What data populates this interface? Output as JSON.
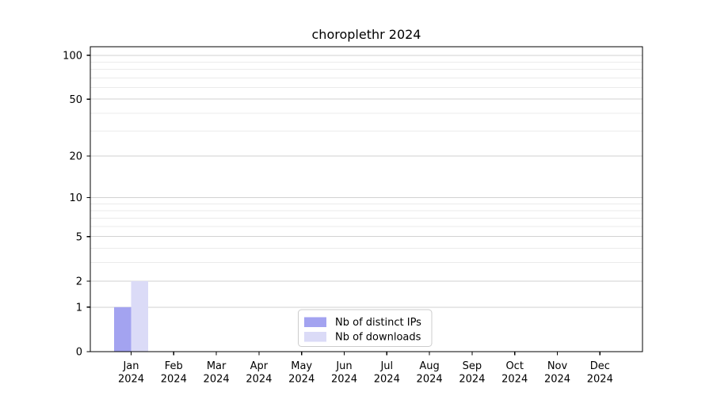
{
  "title": "choroplethr 2024",
  "chart_data": {
    "type": "bar",
    "title": "choroplethr 2024",
    "x_months": [
      "Jan",
      "Feb",
      "Mar",
      "Apr",
      "May",
      "Jun",
      "Jul",
      "Aug",
      "Sep",
      "Oct",
      "Nov",
      "Dec"
    ],
    "x_year": "2024",
    "series": [
      {
        "name": "Nb of distinct IPs",
        "color": "#a3a3f0",
        "values": [
          1,
          0,
          0,
          0,
          0,
          0,
          0,
          0,
          0,
          0,
          0,
          0
        ]
      },
      {
        "name": "Nb of downloads",
        "color": "#dbdbf7",
        "values": [
          2,
          0,
          0,
          0,
          0,
          0,
          0,
          0,
          0,
          0,
          0,
          0
        ]
      }
    ],
    "y_scale": "log1p",
    "y_tick_labels": [
      "0",
      "1",
      "2",
      "5",
      "10",
      "20",
      "50",
      "100"
    ],
    "y_tick_values": [
      0,
      1,
      2,
      5,
      10,
      20,
      50,
      100
    ],
    "y_minor_gridlines": [
      3,
      4,
      6,
      7,
      8,
      9,
      30,
      40,
      60,
      70,
      80,
      90
    ],
    "ylim": [
      0,
      115
    ],
    "grid": "horizontal-major-minor",
    "legend": {
      "position": "inside-bottom-center",
      "entries": [
        "Nb of distinct IPs",
        "Nb of downloads"
      ]
    }
  },
  "colors": {
    "axis": "#000000",
    "grid_major": "#d2d2d2",
    "grid_minor": "#ebebeb",
    "legend_border": "#cccccc",
    "background": "#ffffff",
    "bar_distinct_ips": "#a3a3f0",
    "bar_downloads": "#dbdbf7"
  }
}
